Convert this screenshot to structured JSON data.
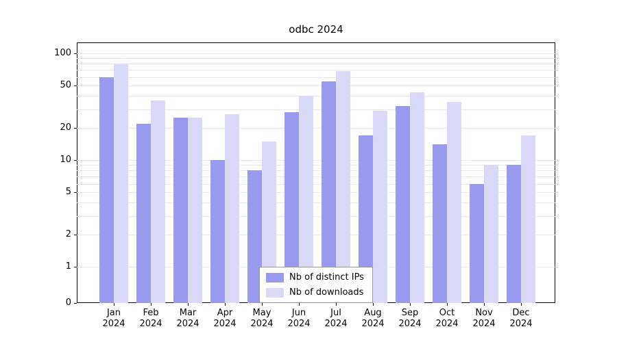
{
  "title": "odbc 2024",
  "chart_data": {
    "type": "bar",
    "title": "odbc 2024",
    "categories": [
      "Jan 2024",
      "Feb 2024",
      "Mar 2024",
      "Apr 2024",
      "May 2024",
      "Jun 2024",
      "Jul 2024",
      "Aug 2024",
      "Sep 2024",
      "Oct 2024",
      "Nov 2024",
      "Dec 2024"
    ],
    "series": [
      {
        "name": "Nb of distinct IPs",
        "color": "#9999ee",
        "values": [
          60,
          22,
          25,
          10,
          8,
          28,
          55,
          17,
          32,
          14,
          6,
          9
        ]
      },
      {
        "name": "Nb of downloads",
        "color": "#dadaf8",
        "values": [
          80,
          36,
          25,
          27,
          15,
          40,
          68,
          29,
          43,
          35,
          9,
          17
        ]
      }
    ],
    "yscale": "symlog",
    "yticks": [
      0,
      1,
      2,
      5,
      10,
      20,
      50,
      100
    ],
    "ylim": [
      0,
      100
    ],
    "grid": "horizontal-minor-log",
    "grid_color": "#e8e8e8",
    "legend_position": "bottom-center",
    "xlabel": "",
    "ylabel": ""
  }
}
